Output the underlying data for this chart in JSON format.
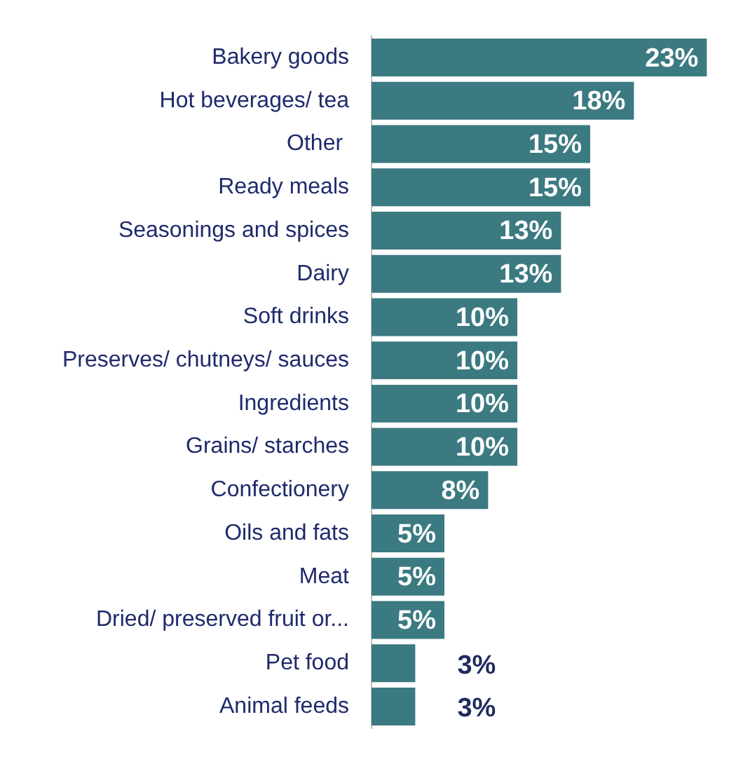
{
  "chart_data": {
    "type": "bar",
    "orientation": "horizontal",
    "categories": [
      "Bakery goods",
      "Hot beverages/ tea",
      "Other ",
      "Ready meals",
      "Seasonings and spices",
      "Dairy",
      "Soft drinks",
      "Preserves/ chutneys/ sauces",
      "Ingredients",
      "Grains/ starches",
      "Confectionery",
      "Oils and fats",
      "Meat",
      "Dried/ preserved fruit or...",
      "Pet food",
      "Animal feeds"
    ],
    "values": [
      23,
      18,
      15,
      15,
      13,
      13,
      10,
      10,
      10,
      10,
      8,
      5,
      5,
      5,
      3,
      3
    ],
    "value_labels": [
      "23%",
      "18%",
      "15%",
      "15%",
      "13%",
      "13%",
      "10%",
      "10%",
      "10%",
      "10%",
      "8%",
      "5%",
      "5%",
      "5%",
      "3%",
      "3%"
    ],
    "color": "#3b7a80",
    "grid": false,
    "legend": false
  }
}
